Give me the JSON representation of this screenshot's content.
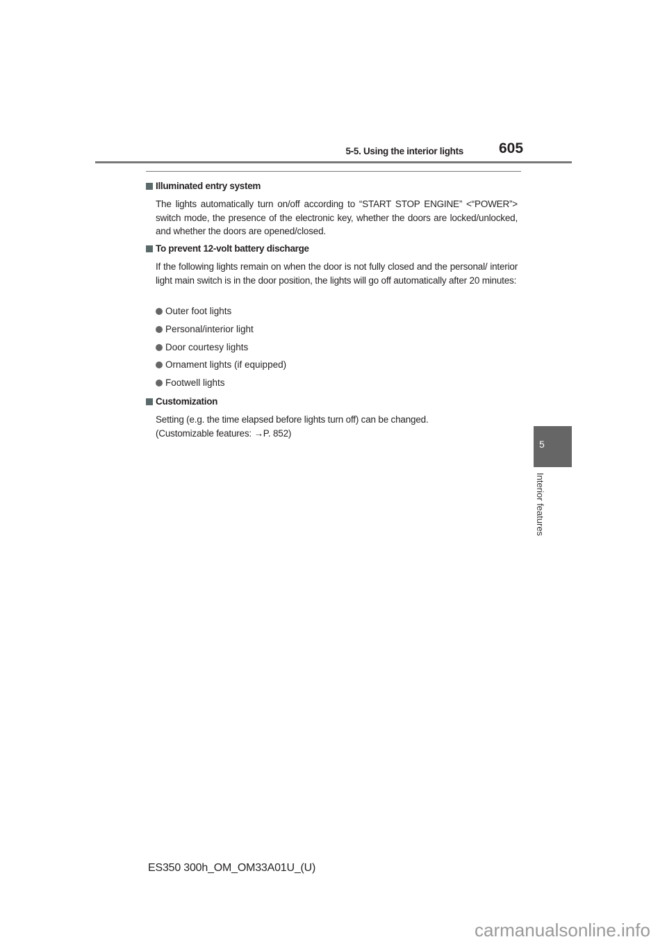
{
  "header": {
    "section": "5-5. Using the interior lights",
    "page_number": "605"
  },
  "side_tab": {
    "chapter_number": "5",
    "chapter_title": "Interior features"
  },
  "sections": [
    {
      "heading": "Illuminated entry system",
      "text": "The lights automatically turn on/off according to “START STOP ENGINE” <“POWER”> switch mode, the presence of the electronic key, whether the doors are locked/unlocked, and whether the doors are opened/closed."
    },
    {
      "heading": "To prevent 12-volt battery discharge",
      "text": "If the following lights remain on when the door is not fully closed and the personal/ interior light main switch is in the door position, the lights will go off automatically after 20 minutes:",
      "bullets": [
        "Outer foot lights",
        "Personal/interior light",
        "Door courtesy lights",
        "Ornament lights (if equipped)",
        "Footwell lights"
      ]
    },
    {
      "heading": "Customization",
      "line1": "Setting (e.g. the time elapsed before lights turn off) can be changed.",
      "line2": "(Customizable features: →P. 852)"
    }
  ],
  "footer": {
    "model_code": "ES350 300h_OM_OM33A01U_(U)"
  },
  "watermark": "carmanualsonline.info"
}
